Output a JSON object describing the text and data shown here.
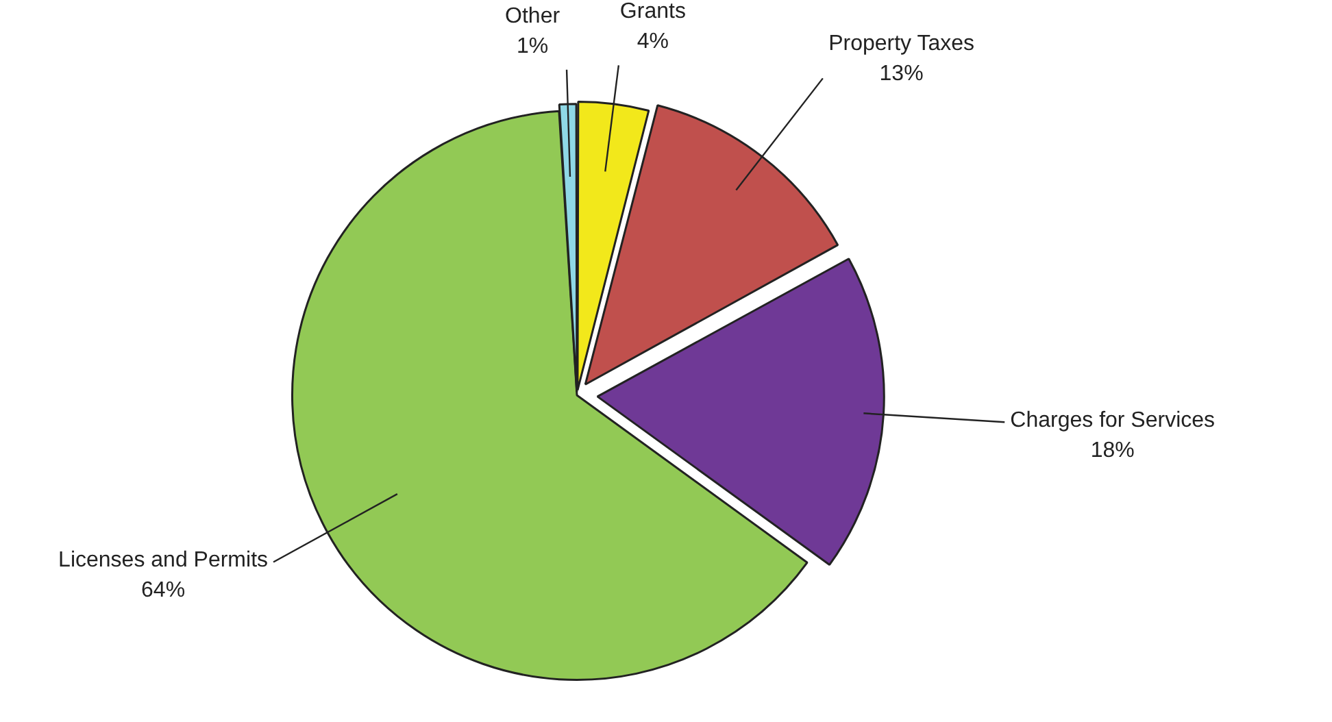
{
  "chart_data": {
    "type": "pie",
    "categories": [
      "Grants",
      "Property Taxes",
      "Charges for Services",
      "Licenses and Permits",
      "Other"
    ],
    "values": [
      4,
      13,
      18,
      64,
      1
    ],
    "value_labels": [
      "4%",
      "13%",
      "18%",
      "64%",
      "1%"
    ],
    "colors": [
      "#f2e81b",
      "#c0504d",
      "#6f3996",
      "#92c955",
      "#8fd8e6"
    ],
    "legend": false
  }
}
